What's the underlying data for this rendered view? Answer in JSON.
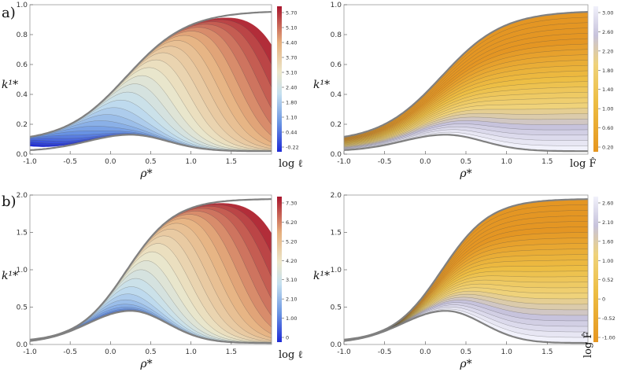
{
  "panel_labels": [
    "a)",
    "b)"
  ],
  "chart_data": [
    {
      "type": "contour",
      "xlabel": "ρ*",
      "ylabel": "k¹*",
      "xlim": [
        -1.0,
        2.0
      ],
      "ylim": [
        0,
        1.0
      ],
      "xticks": [
        "-1.0",
        "-0.5",
        "0.0",
        "0.5",
        "1.0",
        "1.5"
      ],
      "yticks": [
        "0.0",
        "0.2",
        "0.4",
        "0.6",
        "0.8",
        "1.0"
      ],
      "colorbar_label": "log ℓ",
      "colorbar_ticks": [
        "5.70",
        "5.10",
        "4.40",
        "3.70",
        "3.10",
        "2.40",
        "1.80",
        "1.10",
        "0.44",
        "-0.22"
      ],
      "colorscale": "blue-red",
      "bottom_peak": 0.13,
      "top_max": 0.96
    },
    {
      "type": "contour",
      "xlabel": "ρ*",
      "ylabel": "k¹*",
      "xlim": [
        -1.0,
        2.0
      ],
      "ylim": [
        0,
        1.0
      ],
      "xticks": [
        "-1.0",
        "-0.5",
        "0.0",
        "0.5",
        "1.0",
        "1.5"
      ],
      "yticks": [
        "0.0",
        "0.2",
        "0.4",
        "0.6",
        "0.8",
        "1.0"
      ],
      "colorbar_label": "log F̂",
      "colorbar_ticks": [
        "3.00",
        "2.60",
        "2.20",
        "1.80",
        "1.40",
        "1.00",
        "0.60",
        "0.20"
      ],
      "colorscale": "lavender-orange",
      "bottom_peak": 0.13,
      "top_max": 0.96
    },
    {
      "type": "contour",
      "xlabel": "ρ*",
      "ylabel": "k¹*",
      "xlim": [
        -1.0,
        2.0
      ],
      "ylim": [
        0,
        2.0
      ],
      "xticks": [
        "-1.0",
        "-0.5",
        "0.0",
        "0.5",
        "1.0",
        "1.5"
      ],
      "yticks": [
        "0.0",
        "0.5",
        "1.0",
        "1.5",
        "2.0"
      ],
      "colorbar_label": "log ℓ",
      "colorbar_ticks": [
        "7.30",
        "6.20",
        "5.20",
        "4.20",
        "3.10",
        "2.10",
        "1.00",
        "0"
      ],
      "colorscale": "blue-red",
      "bottom_peak": 0.45,
      "top_max": 1.95
    },
    {
      "type": "contour",
      "xlabel": "ρ*",
      "ylabel": "k¹*",
      "xlim": [
        -1.0,
        2.0
      ],
      "ylim": [
        0,
        2.0
      ],
      "xticks": [
        "-1.0",
        "-0.5",
        "0.0",
        "0.5",
        "1.0",
        "1.5"
      ],
      "yticks": [
        "0.0",
        "0.5",
        "1.0",
        "1.5",
        "2.0"
      ],
      "colorbar_label": "log F̂",
      "colorbar_ticks": [
        "2.60",
        "2.10",
        "1.60",
        "1.00",
        "0.52",
        "0",
        "-0.52",
        "-1.00"
      ],
      "colorscale": "lavender-orange",
      "bottom_peak": 0.45,
      "top_max": 1.95
    }
  ]
}
